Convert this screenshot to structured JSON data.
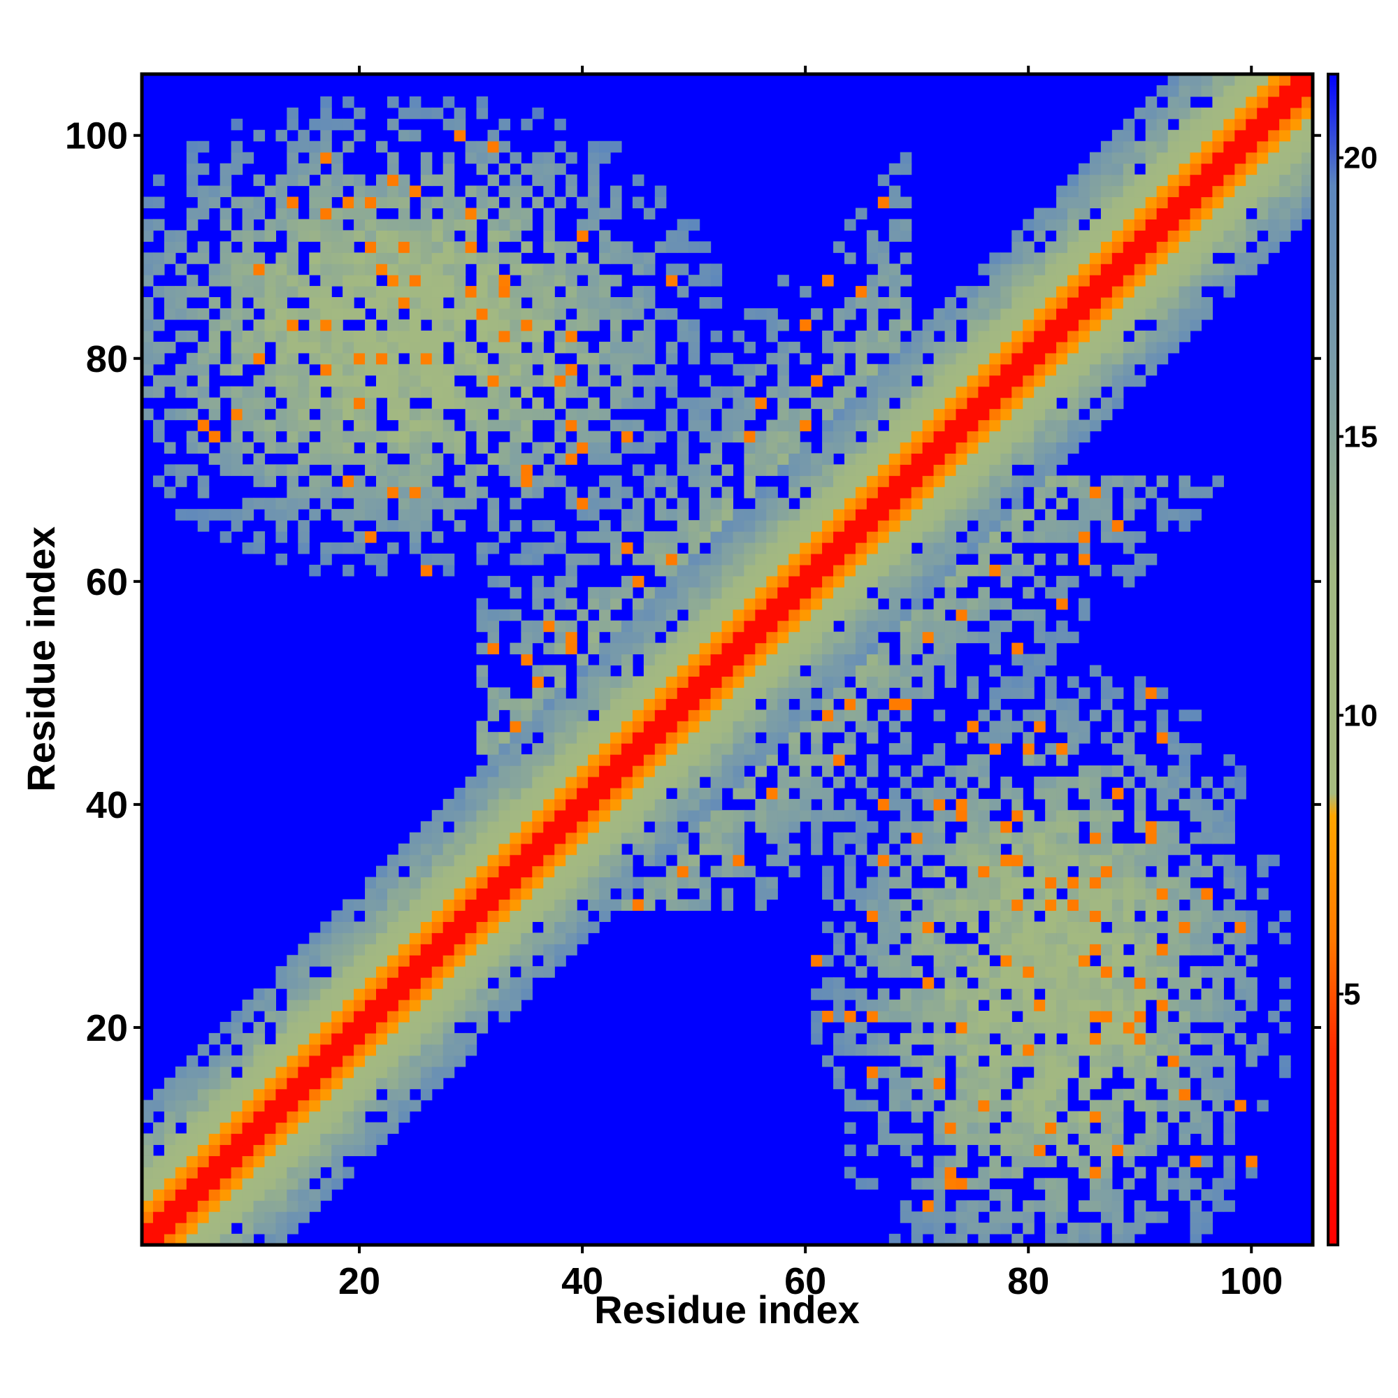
{
  "chart_data": {
    "type": "heatmap",
    "title": "",
    "xlabel": "Residue index",
    "ylabel": "Residue index",
    "n_residues": 105,
    "xlim": [
      1,
      105
    ],
    "ylim": [
      1,
      105
    ],
    "xticks": [
      20,
      40,
      60,
      80,
      100
    ],
    "yticks": [
      20,
      40,
      60,
      80,
      100
    ],
    "xtick_labels": [
      "20",
      "40",
      "60",
      "80",
      "100"
    ],
    "ytick_labels": [
      "20",
      "40",
      "60",
      "80",
      "100"
    ],
    "colorbar": {
      "range": [
        0.5,
        21.5
      ],
      "ticks": [
        5,
        10,
        15,
        20
      ],
      "labels": [
        "5",
        "10",
        "15",
        "20"
      ],
      "stops": [
        {
          "value": 0.5,
          "color": "#ff0000"
        },
        {
          "value": 4.0,
          "color": "#ff2a00"
        },
        {
          "value": 6.0,
          "color": "#ff7a00"
        },
        {
          "value": 8.2,
          "color": "#ffa500"
        },
        {
          "value": 8.6,
          "color": "#a6bb80"
        },
        {
          "value": 12.5,
          "color": "#a2b882"
        },
        {
          "value": 16.0,
          "color": "#7d9ea6"
        },
        {
          "value": 19.5,
          "color": "#5d87bd"
        },
        {
          "value": 21.5,
          "color": "#0000ff"
        }
      ]
    },
    "matrix_encoding": "symmetric distance matrix in Angstrom; 0 = beyond 21 Angstrom cutoff (blue)",
    "matrix_description": "Strong red diagonal (|i-j|<=1), orange near-diagonal band, green-grey halo; off-diagonal contact domains: residues 1-50 vs 60-100 (upper-left block) and residues 50-100 vs 1-45 (lower-right block), mirrored across the diagonal.",
    "contact_hotspots": [
      {
        "i": 7,
        "j": 73,
        "value": 6
      },
      {
        "i": 14,
        "j": 94,
        "value": 6
      },
      {
        "i": 21,
        "j": 90,
        "value": 6
      },
      {
        "i": 25,
        "j": 87,
        "value": 6
      },
      {
        "i": 30,
        "j": 86,
        "value": 6
      },
      {
        "i": 33,
        "j": 82,
        "value": 6
      },
      {
        "i": 38,
        "j": 78,
        "value": 6
      },
      {
        "i": 40,
        "j": 72,
        "value": 6
      },
      {
        "i": 48,
        "j": 62,
        "value": 6
      },
      {
        "i": 63,
        "j": 44,
        "value": 6
      },
      {
        "i": 67,
        "j": 40,
        "value": 6
      },
      {
        "i": 74,
        "j": 39,
        "value": 6
      },
      {
        "i": 79,
        "j": 39,
        "value": 6
      },
      {
        "i": 84,
        "j": 31,
        "value": 6
      },
      {
        "i": 86,
        "j": 33,
        "value": 6
      },
      {
        "i": 90,
        "j": 24,
        "value": 6
      },
      {
        "i": 93,
        "j": 17,
        "value": 6
      },
      {
        "i": 74,
        "j": 6,
        "value": 6
      },
      {
        "i": 61,
        "j": 26,
        "value": 6
      },
      {
        "i": 64,
        "j": 21,
        "value": 6
      }
    ]
  }
}
